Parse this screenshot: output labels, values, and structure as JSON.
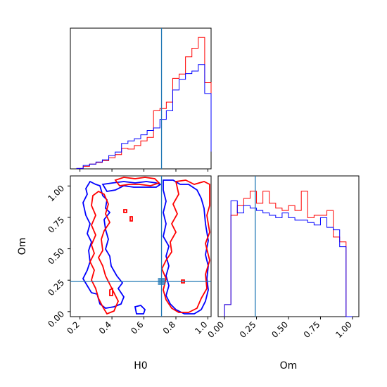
{
  "chart_data": [
    {
      "type": "histogram",
      "panel": "H0 marginal",
      "x_range": [
        0.14,
        1.02
      ],
      "bins": [
        0.18,
        0.22,
        0.26,
        0.3,
        0.34,
        0.38,
        0.42,
        0.46,
        0.5,
        0.54,
        0.58,
        0.62,
        0.66,
        0.7,
        0.74,
        0.78,
        0.82,
        0.86,
        0.9,
        0.94,
        0.98,
        1.02
      ],
      "truth_line": 0.71,
      "series": [
        {
          "color": "#ff0000",
          "counts": [
            0.2,
            1.2,
            2.2,
            3.0,
            3.8,
            5.2,
            6.6,
            9.5,
            9.2,
            10.8,
            13.0,
            14.6,
            27.0,
            28.0,
            31.0,
            42.0,
            44.0,
            52.0,
            56.0,
            61.0,
            40.0,
            8.0
          ]
        },
        {
          "color": "#0000ff",
          "counts": [
            0.2,
            1.6,
            2.2,
            3.2,
            4.2,
            6.2,
            7.8,
            11.8,
            13.0,
            14.0,
            15.8,
            17.8,
            19.0,
            23.0,
            27.0,
            36.6,
            41.6,
            44.2,
            45.4,
            48.4,
            35.0,
            8.0
          ]
        }
      ]
    },
    {
      "type": "histogram",
      "panel": "Om marginal",
      "x_range": [
        -0.05,
        1.05
      ],
      "xticks": [
        "0.00",
        "0.25",
        "0.50",
        "0.75",
        "1.00"
      ],
      "xlabel": "Om",
      "bins": [
        0.0,
        0.05,
        0.1,
        0.15,
        0.2,
        0.25,
        0.3,
        0.35,
        0.4,
        0.45,
        0.5,
        0.55,
        0.6,
        0.65,
        0.7,
        0.75,
        0.8,
        0.85,
        0.9,
        0.95,
        1.0
      ],
      "truth_line": 0.24,
      "series": [
        {
          "color": "#ff0000",
          "counts": [
            5,
            42,
            46,
            49,
            52,
            47,
            52,
            47,
            45,
            44,
            46,
            44,
            52,
            41,
            42,
            42,
            44,
            33,
            31,
            0
          ]
        },
        {
          "color": "#0000ff",
          "counts": [
            5,
            48,
            43,
            46,
            45,
            44,
            43,
            42,
            41,
            43,
            41,
            40,
            40,
            39,
            38,
            41,
            37,
            36,
            29,
            0
          ]
        }
      ]
    },
    {
      "type": "contour",
      "panel": "H0 vs Om joint",
      "xlabel": "H0",
      "ylabel": "Om",
      "x_range": [
        0.14,
        1.02
      ],
      "y_range": [
        -0.04,
        1.08
      ],
      "xticks": [
        "0.2",
        "0.4",
        "0.6",
        "0.8",
        "1.0"
      ],
      "yticks": [
        "0.00",
        "0.25",
        "0.50",
        "0.75",
        "1.00"
      ],
      "truth_point": [
        0.71,
        0.24
      ],
      "series": [
        {
          "color": "#ff0000"
        },
        {
          "color": "#0000ff"
        }
      ]
    }
  ]
}
